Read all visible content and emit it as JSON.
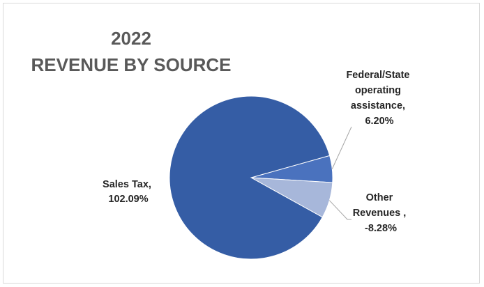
{
  "chart_data": {
    "type": "pie",
    "title": "2022",
    "subtitle": "REVENUE BY SOURCE",
    "slices": [
      {
        "name": "Sales Tax",
        "value": 102.09,
        "value_label": "102.09%",
        "color": "#355da5"
      },
      {
        "name": "Federal/State operating assistance",
        "value": 6.2,
        "value_label": "6.20%",
        "color": "#4a72be"
      },
      {
        "name": "Other Revenues",
        "value": -8.28,
        "value_label": "-8.28%",
        "color": "#a7b7da"
      }
    ],
    "labels": {
      "sales_tax": [
        "Sales Tax,",
        "102.09%"
      ],
      "federal_state": [
        "Federal/State",
        "operating",
        "assistance,",
        "6.20%"
      ],
      "other": [
        "Other",
        "Revenues ,",
        "-8.28%"
      ]
    },
    "leader_line_color": "#a6a6a6",
    "legend": "none"
  }
}
